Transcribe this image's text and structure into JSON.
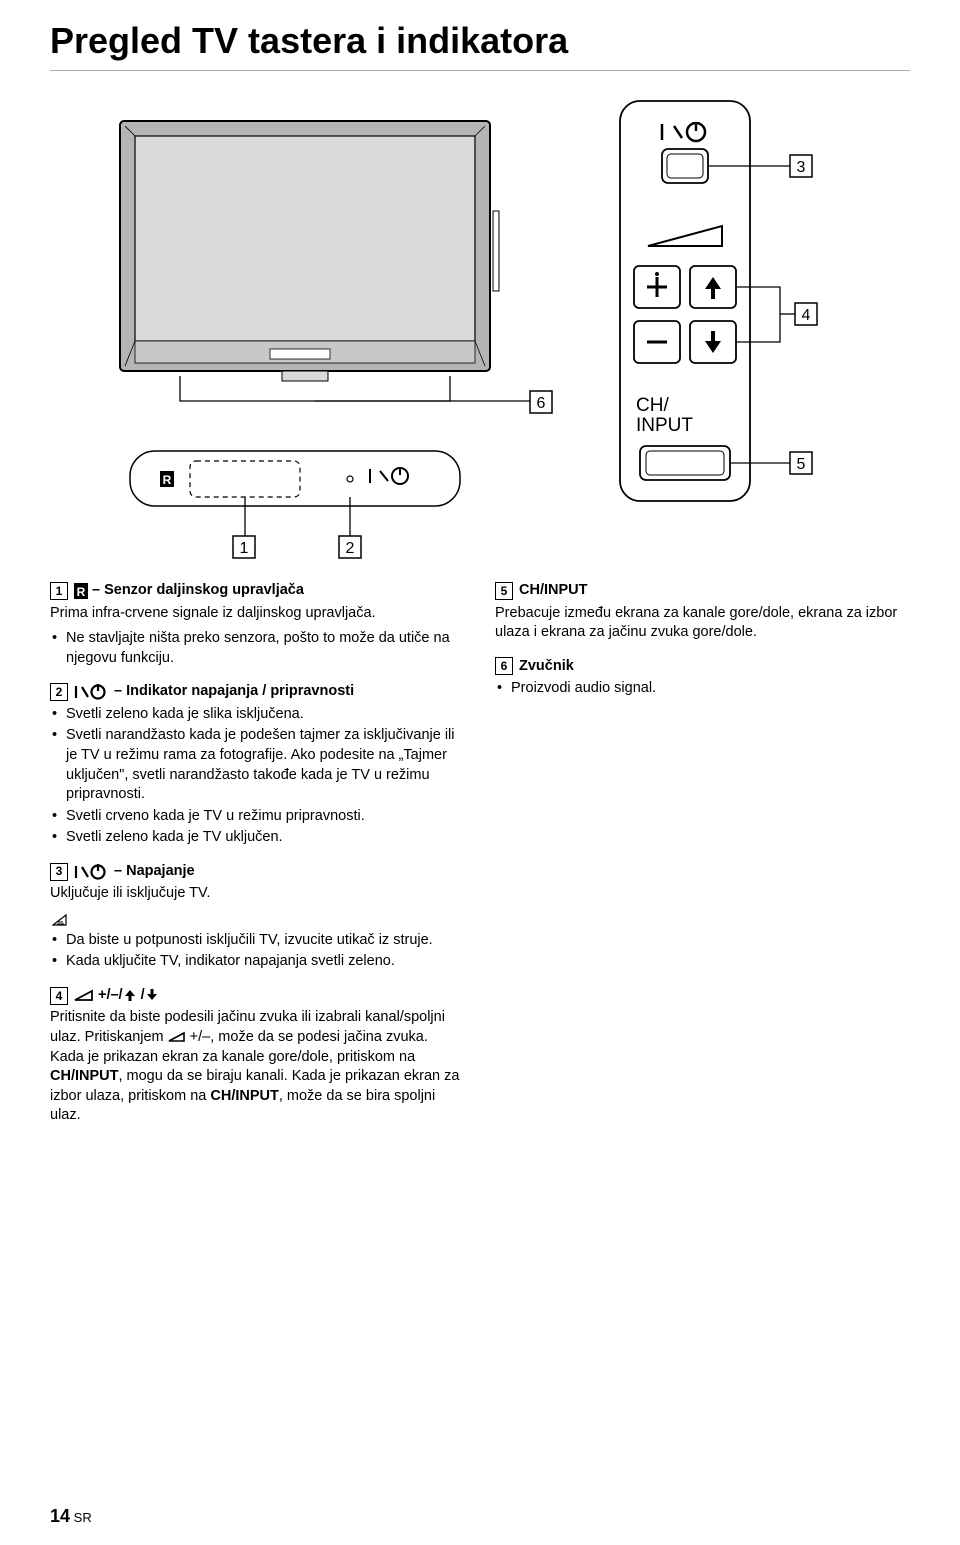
{
  "title": "Pregled TV tastera i indikatora",
  "diagram": {
    "ch_input_label": "CH/\nINPUT",
    "callouts": [
      "1",
      "2",
      "3",
      "4",
      "5",
      "6"
    ]
  },
  "items": [
    {
      "num": "1",
      "icon_svg": "R",
      "head": "– Senzor daljinskog upravljača",
      "body": "Prima infra-crvene signale iz daljinskog upravljača.",
      "bullets": [
        "Ne stavljajte ništa preko senzora, pošto to može da utiče na njegovu funkciju."
      ]
    },
    {
      "num": "2",
      "icon_power": true,
      "head": "– Indikator napajanja / pripravnosti",
      "bullets": [
        "Svetli zeleno kada je slika isključena.",
        "Svetli narandžasto kada je podešen tajmer za isključivanje ili je TV u režimu rama za fotografije. Ako podesite na „Tajmer uključen\", svetli narandžasto takođe kada je TV u režimu pripravnosti.",
        "Svetli crveno kada je TV u režimu pripravnosti.",
        "Svetli zeleno kada je TV uključen."
      ]
    },
    {
      "num": "3",
      "icon_power": true,
      "head": "– Napajanje",
      "body": "Uključuje ili isključuje TV.",
      "note": true,
      "bullets": [
        "Da biste u potpunosti isključili TV, izvucite utikač iz struje.",
        "Kada uključite TV, indikator napajanja svetli zeleno."
      ]
    },
    {
      "num": "4",
      "icon_vol_arrows": true,
      "head_plain": "+/–/",
      "body_rich": "Pritisnite da biste podesili jačinu zvuka ili izabrali kanal/spoljni ulaz. Pritiskanjem {VOLICON} +/–, može da se podesi jačina zvuka. Kada je prikazan ekran za kanale gore/dole, pritiskom na {B}CH/INPUT{/B}, mogu da se biraju kanali. Kada je prikazan ekran za izbor ulaza, pritiskom na {B}CH/INPUT{/B}, može da se bira spoljni ulaz."
    },
    {
      "num": "5",
      "head": "CH/INPUT",
      "body": "Prebacuje između ekrana za kanale gore/dole, ekrana za izbor ulaza i ekrana za jačinu zvuka gore/dole."
    },
    {
      "num": "6",
      "head": "Zvučnik",
      "bullets": [
        "Proizvodi audio signal."
      ]
    }
  ],
  "footer": {
    "page": "14",
    "suffix": "SR"
  },
  "colors": {
    "line": "#000000",
    "tv_fill": "#b5b5b5",
    "screen_fill": "#d9d9d9",
    "grey_rule": "#a8a8a8"
  }
}
